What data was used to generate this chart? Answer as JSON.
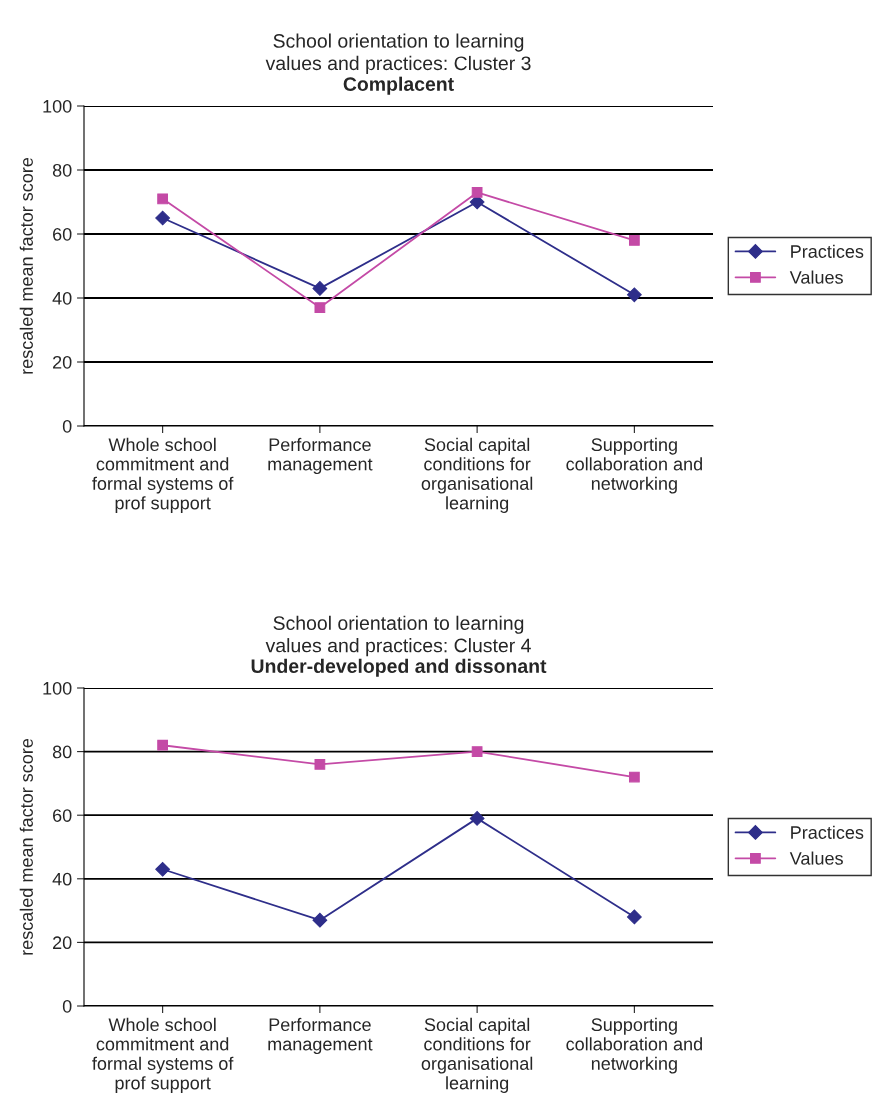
{
  "chart_data": [
    {
      "type": "line",
      "title": "School orientation to learning\nvalues and practices: Cluster 3",
      "subtitle": "Complacent",
      "ylabel": "rescaled mean factor score",
      "categories": [
        "Whole school\ncommitment and\nformal systems of\nprof support",
        "Performance\nmanagement",
        "Social capital\nconditions for\norganisational\nlearning",
        "Supporting\ncollaboration and\nnetworking"
      ],
      "series": [
        {
          "name": "Practices",
          "color": "#2e2e8a",
          "marker": "diamond",
          "values": [
            65,
            43,
            70,
            41
          ]
        },
        {
          "name": "Values",
          "color": "#c44aa6",
          "marker": "square",
          "values": [
            71,
            37,
            73,
            58
          ]
        }
      ],
      "ylim": [
        0,
        100
      ],
      "yticks": [
        0,
        20,
        40,
        60,
        80,
        100
      ],
      "grid": "y",
      "legend": "right"
    },
    {
      "type": "line",
      "title": "School orientation to learning\nvalues and practices: Cluster 4",
      "subtitle": "Under-developed and dissonant",
      "ylabel": "rescaled mean factor score",
      "categories": [
        "Whole school\ncommitment and\nformal systems of\nprof support",
        "Performance\nmanagement",
        "Social capital\nconditions for\norganisational\nlearning",
        "Supporting\ncollaboration and\nnetworking"
      ],
      "series": [
        {
          "name": "Practices",
          "color": "#2e2e8a",
          "marker": "diamond",
          "values": [
            43,
            27,
            59,
            28
          ]
        },
        {
          "name": "Values",
          "color": "#c44aa6",
          "marker": "square",
          "values": [
            82,
            76,
            80,
            72
          ]
        }
      ],
      "ylim": [
        0,
        100
      ],
      "yticks": [
        0,
        20,
        40,
        60,
        80,
        100
      ],
      "grid": "y",
      "legend": "right"
    }
  ]
}
